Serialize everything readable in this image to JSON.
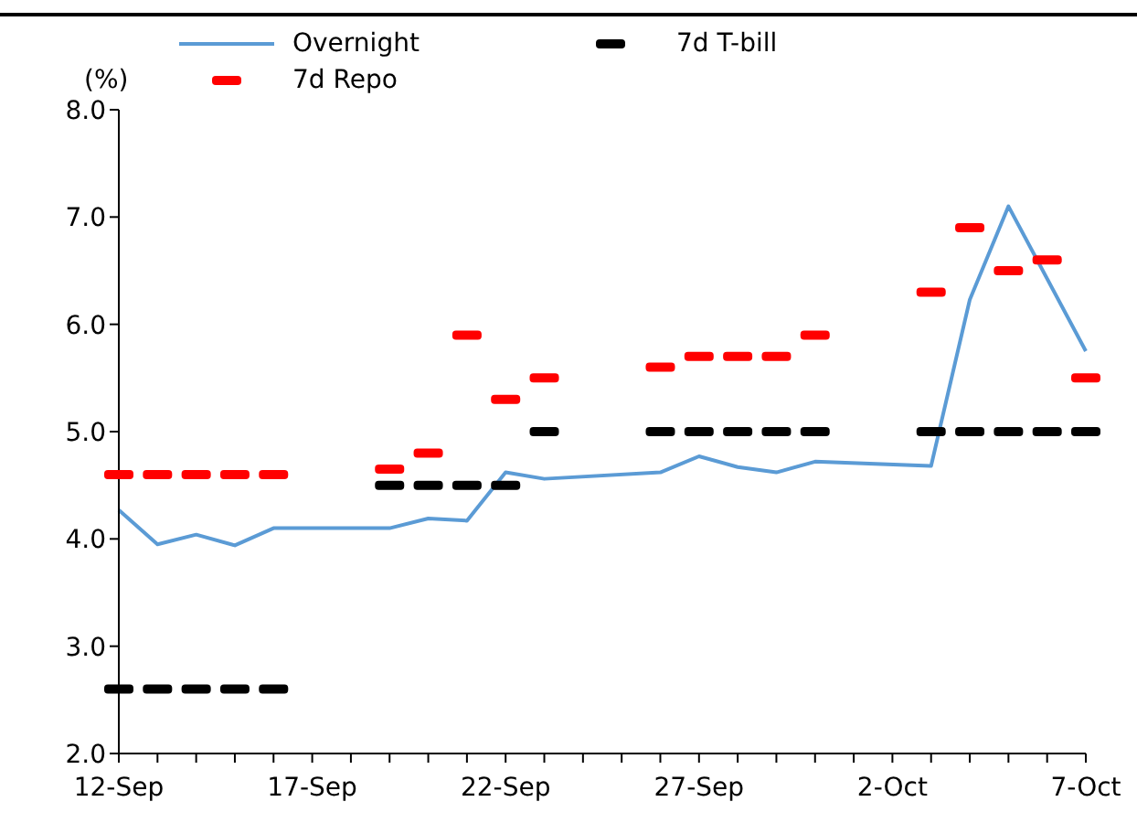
{
  "chart_data": {
    "type": "line",
    "ylabel": "(%)",
    "categories": [
      "12-Sep",
      null,
      null,
      null,
      null,
      "17-Sep",
      null,
      null,
      null,
      null,
      "22-Sep",
      null,
      null,
      null,
      null,
      "27-Sep",
      null,
      null,
      null,
      null,
      "2-Oct",
      null,
      null,
      null,
      null,
      "7-Oct"
    ],
    "series": [
      {
        "name": "Overnight",
        "color": "#5b9bd5",
        "values": [
          4.27,
          3.95,
          4.04,
          3.94,
          4.1,
          null,
          null,
          4.1,
          4.19,
          4.17,
          4.62,
          4.56,
          null,
          null,
          4.62,
          4.77,
          4.67,
          4.62,
          4.72,
          null,
          null,
          4.68,
          6.23,
          7.1,
          null,
          5.75
        ]
      },
      {
        "name": "7d T-bill",
        "type": "scatter",
        "color": "#000000",
        "values": [
          2.6,
          2.6,
          2.6,
          2.6,
          2.6,
          null,
          null,
          4.5,
          4.5,
          4.5,
          4.5,
          5.0,
          null,
          null,
          5.0,
          5.0,
          5.0,
          5.0,
          5.0,
          null,
          null,
          5.0,
          5.0,
          5.0,
          5.0,
          5.0
        ]
      },
      {
        "name": "7d Repo",
        "type": "scatter",
        "color": "#ff0000",
        "values": [
          4.6,
          4.6,
          4.6,
          4.6,
          4.6,
          null,
          null,
          4.65,
          4.8,
          5.9,
          5.3,
          5.5,
          null,
          null,
          5.6,
          5.7,
          5.7,
          5.7,
          5.9,
          null,
          null,
          6.3,
          6.9,
          6.5,
          6.6,
          5.5
        ]
      }
    ],
    "ylim": [
      2,
      8
    ],
    "yticks": [
      {
        "value": 2,
        "label": "2.0"
      },
      {
        "value": 3,
        "label": "3.0"
      },
      {
        "value": 4,
        "label": "4.0"
      },
      {
        "value": 5,
        "label": "5.0"
      },
      {
        "value": 6,
        "label": "6.0"
      },
      {
        "value": 7,
        "label": "7.0"
      },
      {
        "value": 8,
        "label": "8.0"
      }
    ],
    "grid": false,
    "legend": "top"
  }
}
